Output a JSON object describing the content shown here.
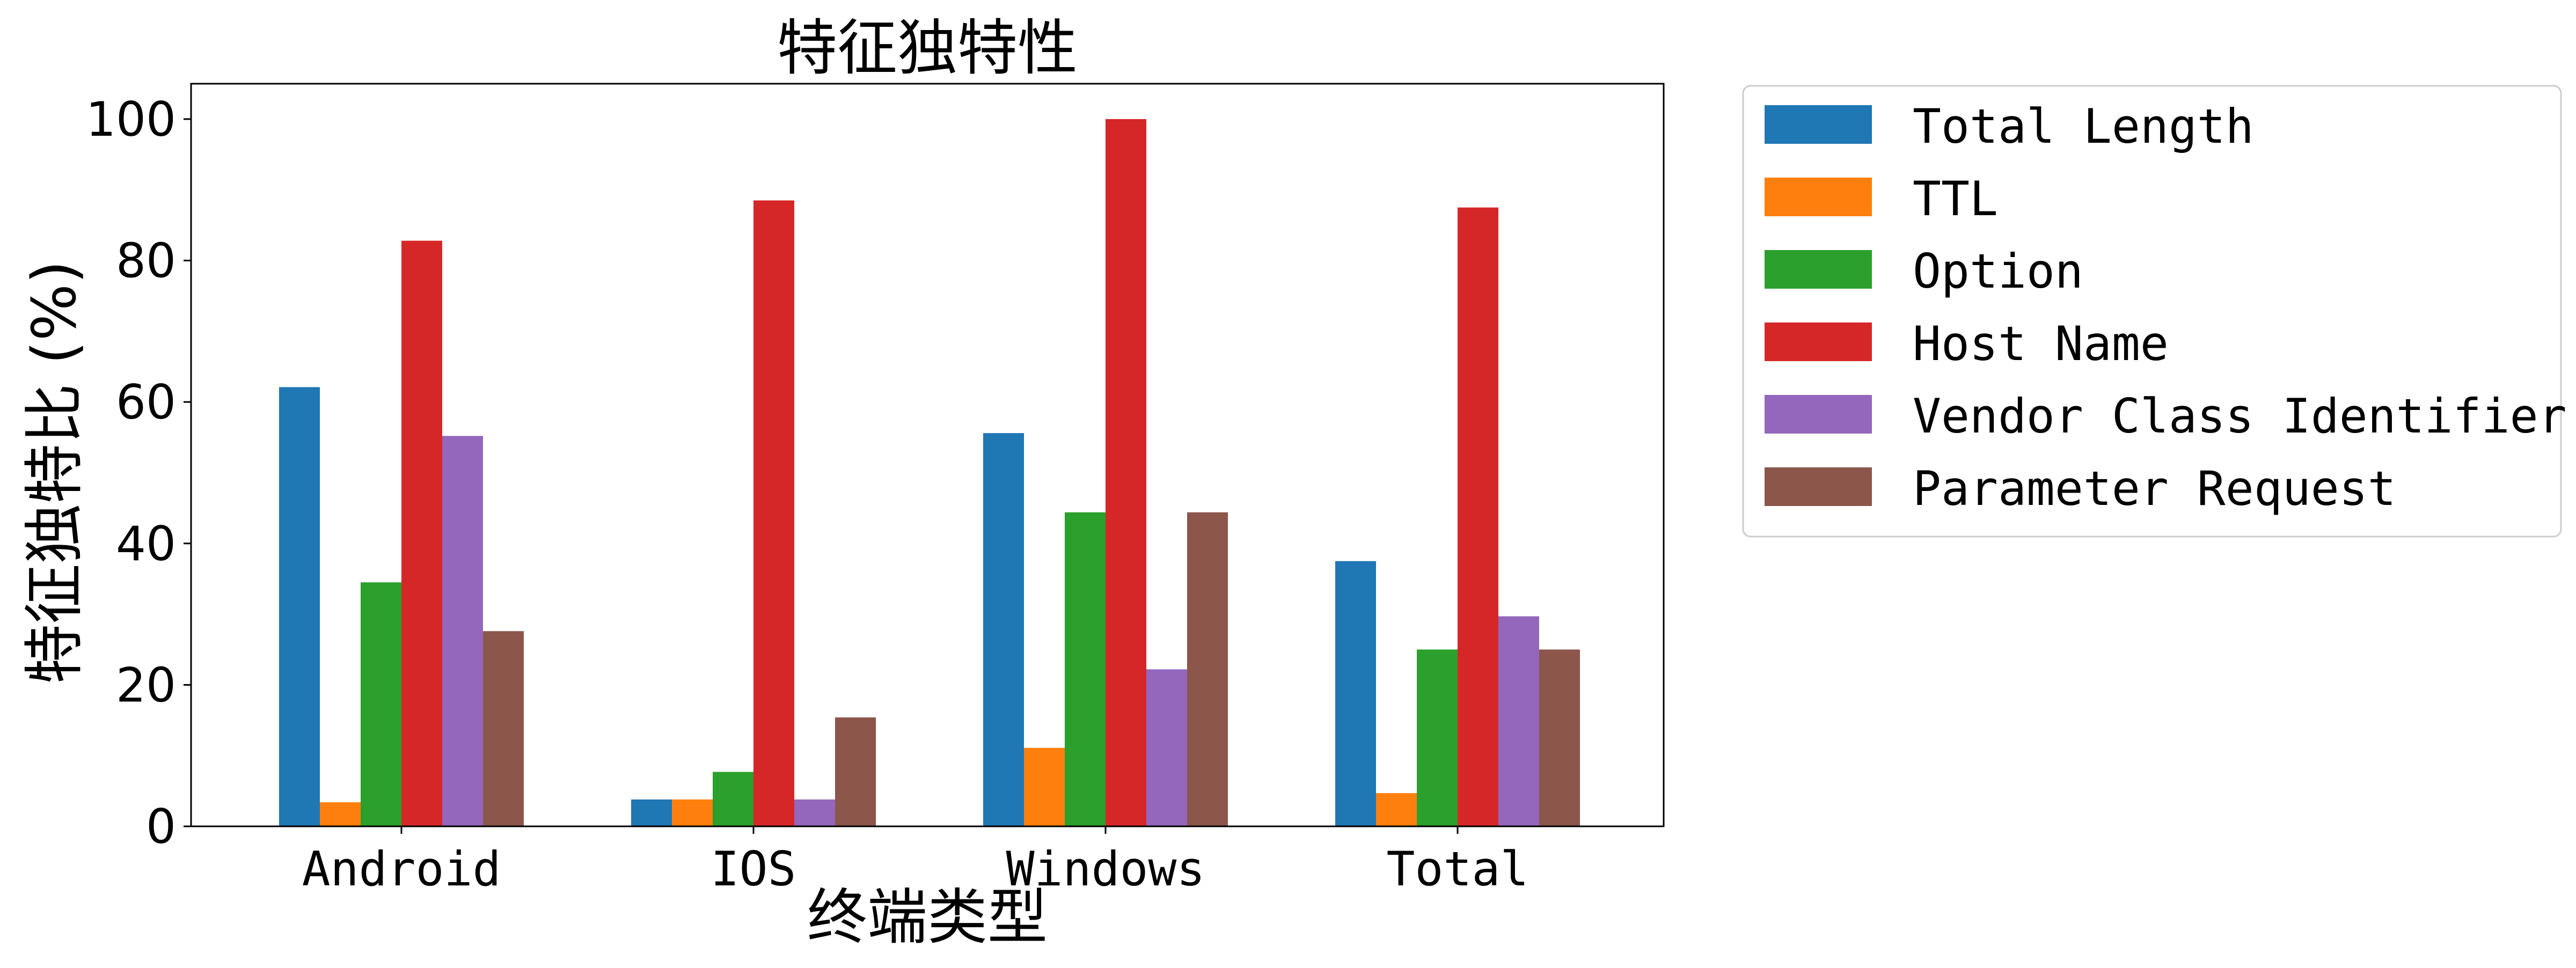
{
  "chart_data": {
    "type": "bar",
    "title": "特征独特性",
    "xlabel": "终端类型",
    "ylabel": "特征独特比 (%)",
    "categories": [
      "Android",
      "IOS",
      "Windows",
      "Total"
    ],
    "ylim": [
      0,
      105
    ],
    "yticks": [
      "0",
      "20",
      "40",
      "60",
      "80",
      "100"
    ],
    "grid": false,
    "legend_position": "outside-right-top",
    "series": [
      {
        "name": "Total Length",
        "color": "#1f77b4",
        "values": [
          62.1,
          3.8,
          55.6,
          37.5
        ]
      },
      {
        "name": "TTL",
        "color": "#ff7f0e",
        "values": [
          3.4,
          3.8,
          11.1,
          4.7
        ]
      },
      {
        "name": "Option",
        "color": "#2ca02c",
        "values": [
          34.5,
          7.7,
          44.4,
          25.0
        ]
      },
      {
        "name": "Host Name",
        "color": "#d62728",
        "values": [
          82.8,
          88.5,
          100.0,
          87.5
        ]
      },
      {
        "name": "Vendor Class Identifier",
        "color": "#9467bd",
        "values": [
          55.2,
          3.8,
          22.2,
          29.7
        ]
      },
      {
        "name": "Parameter Request",
        "color": "#8c564b",
        "values": [
          27.6,
          15.4,
          44.4,
          25.0
        ]
      }
    ]
  }
}
